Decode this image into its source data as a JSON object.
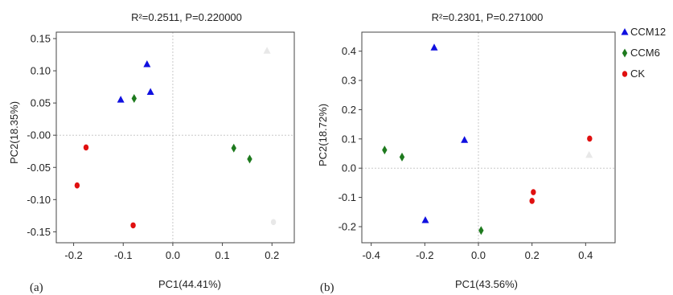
{
  "chart_data": [
    {
      "type": "scatter",
      "panel_label": "(a)",
      "title": "R²=0.2511, P=0.220000",
      "xlabel": "PC1(44.41%)",
      "ylabel": "PC2(18.35%)",
      "xlim": [
        -0.235,
        0.245
      ],
      "ylim": [
        -0.167,
        0.16
      ],
      "xticks": [
        -0.2,
        -0.1,
        0.0,
        0.1,
        0.2
      ],
      "xtick_labels": [
        "-0.2",
        "-0.1",
        "0.0",
        "0.1",
        "0.2"
      ],
      "yticks": [
        0.15,
        0.1,
        0.05,
        0.0,
        -0.05,
        -0.1,
        -0.15
      ],
      "ytick_labels": [
        "0.15",
        "0.10",
        "0.05",
        "-0.00",
        "-0.05",
        "-0.10",
        "-0.15"
      ],
      "reference_lines": {
        "x": 0,
        "y": 0
      },
      "series": [
        {
          "name": "CCM12",
          "marker": "triangle",
          "color": "#1010e0",
          "points": [
            [
              -0.105,
              0.055
            ],
            [
              -0.052,
              0.11
            ],
            [
              -0.045,
              0.067
            ]
          ]
        },
        {
          "name": "CCM6",
          "marker": "diamond",
          "color": "#1e7a1e",
          "points": [
            [
              -0.078,
              0.057
            ],
            [
              0.123,
              -0.02
            ],
            [
              0.155,
              -0.037
            ]
          ]
        },
        {
          "name": "CK",
          "marker": "circle",
          "color": "#e01010",
          "points": [
            [
              -0.175,
              -0.019
            ],
            [
              -0.193,
              -0.078
            ],
            [
              -0.08,
              -0.14
            ]
          ]
        },
        {
          "name": "",
          "marker": "triangle",
          "color": "#e8e8e8",
          "points": [
            [
              0.19,
              0.131
            ]
          ]
        },
        {
          "name": "",
          "marker": "circle",
          "color": "#e8e8e8",
          "points": [
            [
              0.203,
              -0.135
            ]
          ]
        }
      ]
    },
    {
      "type": "scatter",
      "panel_label": "(b)",
      "title": "R²=0.2301, P=0.271000",
      "xlabel": "PC1(43.56%)",
      "ylabel": "PC2(18.72%)",
      "xlim": [
        -0.435,
        0.51
      ],
      "ylim": [
        -0.255,
        0.465
      ],
      "xticks": [
        -0.4,
        -0.2,
        0.0,
        0.2,
        0.4
      ],
      "xtick_labels": [
        "-0.4",
        "-0.2",
        "0.0",
        "0.2",
        "0.4"
      ],
      "yticks": [
        0.4,
        0.3,
        0.2,
        0.1,
        0.0,
        -0.1,
        -0.2
      ],
      "ytick_labels": [
        "0.4",
        "0.3",
        "0.2",
        "0.1",
        "0.0",
        "-0.1",
        "-0.2"
      ],
      "reference_lines": {
        "x": 0,
        "y": 0
      },
      "legend": {
        "placement": "outside-top-right",
        "entries": [
          "CCM12",
          "CCM6",
          "CK"
        ]
      },
      "series": [
        {
          "name": "CCM12",
          "marker": "triangle",
          "color": "#1010e0",
          "points": [
            [
              -0.165,
              0.412
            ],
            [
              -0.052,
              0.096
            ],
            [
              -0.198,
              -0.178
            ]
          ]
        },
        {
          "name": "CCM6",
          "marker": "diamond",
          "color": "#1e7a1e",
          "points": [
            [
              -0.35,
              0.062
            ],
            [
              -0.285,
              0.038
            ],
            [
              0.01,
              -0.213
            ]
          ]
        },
        {
          "name": "CK",
          "marker": "circle",
          "color": "#e01010",
          "points": [
            [
              0.415,
              0.101
            ],
            [
              0.205,
              -0.082
            ],
            [
              0.2,
              -0.112
            ]
          ]
        },
        {
          "name": "",
          "marker": "triangle",
          "color": "#e8e8e8",
          "points": [
            [
              0.413,
              0.045
            ]
          ]
        }
      ]
    }
  ]
}
